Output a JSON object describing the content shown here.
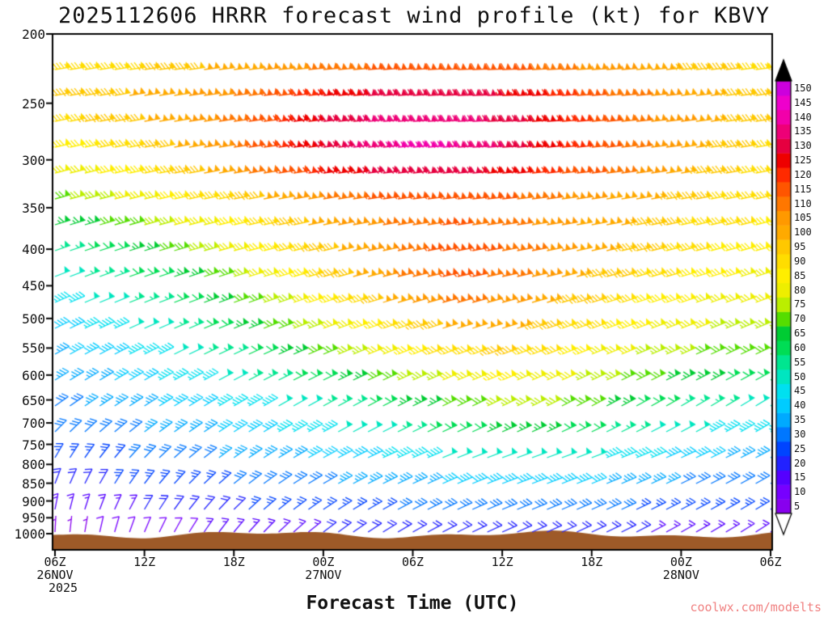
{
  "title": "2025112606 HRRR forecast wind profile (kt) for KBVY",
  "xlabel": "Forecast Time (UTC)",
  "watermark": "coolwx.com/modelts",
  "axes": {
    "pressure_ticks": [
      200,
      250,
      300,
      350,
      400,
      450,
      500,
      550,
      600,
      650,
      700,
      750,
      800,
      850,
      900,
      950,
      1000
    ],
    "time_ticks": [
      {
        "hour": 0,
        "label": "06Z",
        "date": "26NOV",
        "year": "2025"
      },
      {
        "hour": 6,
        "label": "12Z"
      },
      {
        "hour": 12,
        "label": "18Z"
      },
      {
        "hour": 18,
        "label": "00Z",
        "date": "27NOV"
      },
      {
        "hour": 24,
        "label": "06Z"
      },
      {
        "hour": 30,
        "label": "12Z"
      },
      {
        "hour": 36,
        "label": "18Z"
      },
      {
        "hour": 42,
        "label": "00Z",
        "date": "28NOV"
      },
      {
        "hour": 48,
        "label": "06Z"
      }
    ]
  },
  "colorbar": {
    "values": [
      5,
      10,
      15,
      20,
      25,
      30,
      35,
      40,
      45,
      50,
      55,
      60,
      65,
      70,
      75,
      80,
      85,
      90,
      95,
      100,
      105,
      110,
      115,
      120,
      125,
      130,
      135,
      140,
      145,
      150
    ],
    "colors": [
      "#8800ee",
      "#7700ff",
      "#5500ff",
      "#2222ff",
      "#0044ff",
      "#0077ff",
      "#00aaff",
      "#00ccff",
      "#00e0f0",
      "#00e6c0",
      "#00e690",
      "#00dd55",
      "#00cc33",
      "#55dd00",
      "#bbee00",
      "#eeee00",
      "#ffee00",
      "#ffdd00",
      "#ffc800",
      "#ffaa00",
      "#ff9900",
      "#ff7700",
      "#ff5500",
      "#ff2a00",
      "#ee0000",
      "#e60040",
      "#ee0077",
      "#f200aa",
      "#ee00cc",
      "#cc00dd"
    ],
    "over_color": "#000000",
    "under_color": "#ffffff"
  },
  "terrain_color": "#9e5a28",
  "chart_data": {
    "type": "wind-barb-time-height",
    "model": "HRRR",
    "station": "KBVY",
    "init": "2025112606",
    "units": "kt",
    "time_hours": [
      0,
      3,
      6,
      9,
      12,
      15,
      18,
      21,
      24,
      27,
      30,
      33,
      36,
      39,
      42,
      45,
      48
    ],
    "pressure_levels": [
      200,
      250,
      300,
      350,
      400,
      450,
      500,
      550,
      600,
      650,
      700,
      750,
      800,
      850,
      900,
      950,
      1000
    ],
    "wind_speed_kt": [
      [
        80,
        82,
        84,
        86,
        88,
        90,
        92,
        94,
        96,
        98,
        98,
        96,
        94,
        92,
        90,
        88,
        88
      ],
      [
        95,
        98,
        102,
        106,
        112,
        120,
        127,
        132,
        135,
        135,
        130,
        124,
        117,
        110,
        104,
        98,
        94
      ],
      [
        82,
        86,
        92,
        100,
        110,
        120,
        130,
        136,
        140,
        138,
        132,
        125,
        117,
        109,
        101,
        94,
        90
      ],
      [
        70,
        74,
        79,
        85,
        91,
        97,
        103,
        108,
        112,
        112,
        109,
        105,
        101,
        97,
        93,
        90,
        88
      ],
      [
        56,
        61,
        66,
        73,
        81,
        89,
        97,
        105,
        112,
        115,
        112,
        106,
        100,
        95,
        90,
        86,
        84
      ],
      [
        48,
        52,
        58,
        65,
        73,
        82,
        91,
        101,
        110,
        114,
        110,
        103,
        96,
        90,
        86,
        82,
        80
      ],
      [
        42,
        46,
        52,
        58,
        65,
        73,
        81,
        90,
        99,
        105,
        102,
        96,
        90,
        85,
        81,
        78,
        76
      ],
      [
        38,
        42,
        46,
        52,
        58,
        65,
        72,
        80,
        88,
        95,
        95,
        90,
        84,
        79,
        75,
        72,
        70
      ],
      [
        35,
        38,
        42,
        46,
        52,
        58,
        64,
        70,
        77,
        83,
        85,
        82,
        77,
        72,
        67,
        63,
        60
      ],
      [
        32,
        35,
        38,
        42,
        46,
        50,
        55,
        61,
        67,
        73,
        77,
        75,
        70,
        64,
        59,
        55,
        52
      ],
      [
        29,
        32,
        35,
        38,
        42,
        45,
        49,
        53,
        59,
        65,
        69,
        68,
        63,
        57,
        52,
        48,
        45
      ],
      [
        26,
        28,
        31,
        33,
        36,
        40,
        43,
        46,
        51,
        56,
        59,
        58,
        54,
        49,
        45,
        42,
        40
      ],
      [
        23,
        25,
        27,
        30,
        32,
        34,
        36,
        39,
        43,
        47,
        49,
        48,
        45,
        41,
        38,
        35,
        33
      ],
      [
        19,
        22,
        24,
        26,
        28,
        30,
        32,
        34,
        36,
        39,
        41,
        40,
        38,
        35,
        32,
        30,
        28
      ],
      [
        15,
        18,
        20,
        23,
        25,
        27,
        28,
        29,
        31,
        33,
        35,
        34,
        32,
        30,
        28,
        26,
        25
      ],
      [
        11,
        14,
        16,
        18,
        20,
        22,
        24,
        25,
        26,
        27,
        28,
        28,
        27,
        25,
        24,
        22,
        20
      ],
      [
        6,
        8,
        10,
        12,
        14,
        16,
        18,
        19,
        20,
        22,
        22,
        22,
        20,
        18,
        16,
        15,
        14
      ]
    ],
    "wind_dir_deg": [
      [
        262,
        262,
        263,
        263,
        264,
        265,
        265,
        266,
        267,
        268,
        268,
        268,
        267,
        266,
        265,
        264,
        264
      ],
      [
        260,
        260,
        261,
        262,
        263,
        264,
        265,
        266,
        267,
        268,
        268,
        267,
        266,
        265,
        264,
        263,
        262
      ],
      [
        257,
        258,
        259,
        260,
        261,
        262,
        263,
        264,
        265,
        266,
        266,
        265,
        264,
        263,
        262,
        261,
        260
      ],
      [
        254,
        255,
        256,
        257,
        258,
        259,
        260,
        261,
        262,
        263,
        263,
        262,
        261,
        260,
        259,
        258,
        257
      ],
      [
        251,
        252,
        253,
        254,
        255,
        256,
        257,
        258,
        259,
        260,
        260,
        259,
        258,
        257,
        256,
        255,
        254
      ],
      [
        248,
        249,
        250,
        251,
        252,
        253,
        254,
        255,
        256,
        257,
        257,
        256,
        255,
        254,
        253,
        252,
        251
      ],
      [
        245,
        246,
        247,
        248,
        249,
        250,
        251,
        252,
        253,
        254,
        254,
        253,
        252,
        251,
        250,
        249,
        248
      ],
      [
        242,
        243,
        244,
        245,
        246,
        247,
        248,
        249,
        250,
        251,
        251,
        250,
        249,
        248,
        247,
        246,
        245
      ],
      [
        239,
        240,
        241,
        242,
        243,
        244,
        245,
        246,
        247,
        248,
        248,
        247,
        246,
        245,
        244,
        243,
        242
      ],
      [
        236,
        237,
        238,
        239,
        240,
        241,
        242,
        243,
        244,
        245,
        245,
        244,
        243,
        242,
        241,
        240,
        239
      ],
      [
        232,
        234,
        236,
        237,
        238,
        239,
        240,
        241,
        242,
        243,
        243,
        242,
        241,
        240,
        239,
        238,
        237
      ],
      [
        215,
        222,
        228,
        233,
        237,
        240,
        243,
        245,
        247,
        249,
        250,
        250,
        249,
        248,
        246,
        244,
        242
      ],
      [
        208,
        216,
        223,
        229,
        234,
        238,
        241,
        244,
        246,
        248,
        250,
        250,
        249,
        247,
        245,
        243,
        241
      ],
      [
        201,
        210,
        218,
        225,
        231,
        236,
        240,
        243,
        245,
        247,
        249,
        249,
        248,
        246,
        244,
        242,
        240
      ],
      [
        194,
        204,
        213,
        221,
        228,
        233,
        238,
        241,
        244,
        246,
        248,
        248,
        247,
        245,
        243,
        241,
        239
      ],
      [
        188,
        198,
        208,
        216,
        224,
        230,
        235,
        239,
        242,
        245,
        247,
        247,
        246,
        244,
        242,
        240,
        238
      ],
      [
        183,
        193,
        203,
        212,
        220,
        227,
        233,
        237,
        241,
        244,
        246,
        246,
        245,
        243,
        241,
        239,
        237
      ]
    ]
  }
}
